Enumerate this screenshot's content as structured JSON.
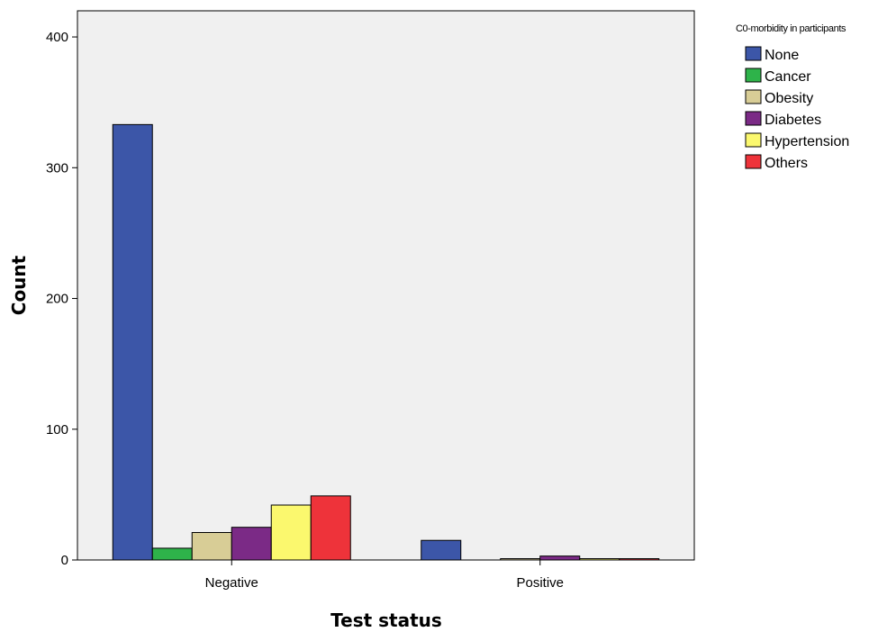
{
  "chart_data": {
    "type": "bar",
    "xlabel": "Test status",
    "ylabel": "Count",
    "ylim": [
      0,
      420
    ],
    "yticks": [
      0,
      100,
      200,
      300,
      400
    ],
    "categories": [
      "Negative",
      "Positive"
    ],
    "legend_title": "C0-morbidity in participants",
    "legend_position": "right",
    "grid": false,
    "plot_background": "#f0f0f0",
    "series": [
      {
        "name": "None",
        "color": "#3c56a8",
        "values": [
          333,
          15
        ]
      },
      {
        "name": "Cancer",
        "color": "#2eb34a",
        "values": [
          9,
          0
        ]
      },
      {
        "name": "Obesity",
        "color": "#d8cd96",
        "values": [
          21,
          1
        ]
      },
      {
        "name": "Diabetes",
        "color": "#7b2a86",
        "values": [
          25,
          3
        ]
      },
      {
        "name": "Hypertension",
        "color": "#fbf86e",
        "values": [
          42,
          1
        ]
      },
      {
        "name": "Others",
        "color": "#ee333a",
        "values": [
          49,
          1
        ]
      }
    ]
  }
}
